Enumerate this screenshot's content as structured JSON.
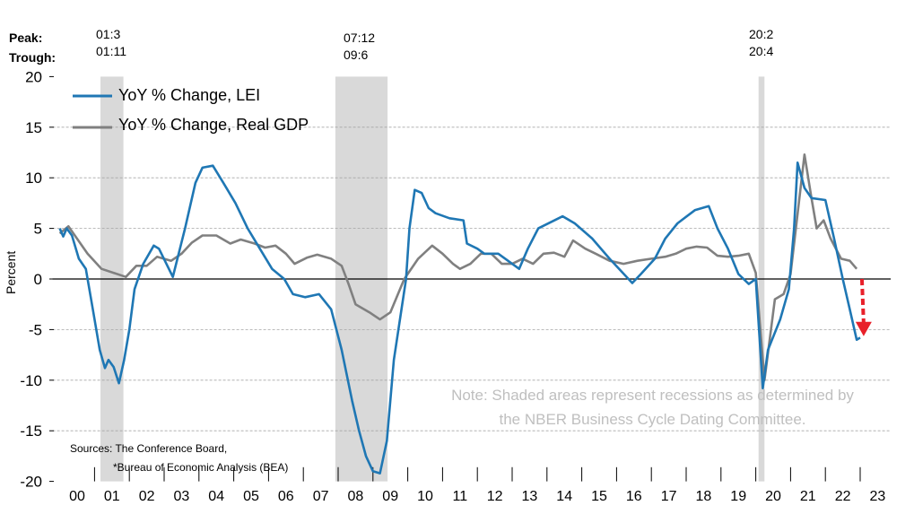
{
  "chart_data": {
    "type": "line",
    "title": "",
    "xlabel": "",
    "ylabel": "Percent",
    "ylim": [
      -20,
      20
    ],
    "yticks": [
      -20,
      -15,
      -10,
      -5,
      0,
      5,
      10,
      15,
      20
    ],
    "xlim": [
      2000,
      2024
    ],
    "xtick_labels": [
      "00",
      "01",
      "02",
      "03",
      "04",
      "05",
      "06",
      "07",
      "08",
      "09",
      "10",
      "11",
      "12",
      "13",
      "14",
      "15",
      "16",
      "17",
      "18",
      "19",
      "20",
      "21",
      "22",
      "23"
    ],
    "grid": true,
    "legend_position": "top-left",
    "series": [
      {
        "name": "YoY % Change, LEI",
        "color": "#1f77b4",
        "x": [
          2000.0,
          2000.1,
          2000.2,
          2000.35,
          2000.55,
          2000.75,
          2000.95,
          2001.15,
          2001.3,
          2001.4,
          2001.55,
          2001.7,
          2001.85,
          2002.0,
          2002.15,
          2002.4,
          2002.7,
          2002.85,
          2003.25,
          2003.6,
          2003.9,
          2004.1,
          2004.4,
          2004.7,
          2005.05,
          2005.4,
          2005.75,
          2006.1,
          2006.45,
          2006.7,
          2007.05,
          2007.45,
          2007.8,
          2008.1,
          2008.4,
          2008.6,
          2008.8,
          2009.0,
          2009.2,
          2009.4,
          2009.6,
          2009.95,
          2010.05,
          2010.2,
          2010.4,
          2010.6,
          2010.8,
          2011.2,
          2011.6,
          2011.7,
          2012.0,
          2012.2,
          2012.6,
          2013.2,
          2013.45,
          2013.75,
          2014.45,
          2014.8,
          2015.3,
          2015.8,
          2016.45,
          2016.7,
          2017.1,
          2017.4,
          2017.75,
          2018.25,
          2018.65,
          2018.9,
          2019.2,
          2019.5,
          2019.8,
          2020.0,
          2020.2,
          2020.35,
          2020.7,
          2020.95,
          2021.1,
          2021.2,
          2021.4,
          2021.6,
          2022.0,
          2022.25,
          2022.5,
          2022.7,
          2022.9,
          2023.0
        ],
        "values": [
          5.0,
          4.2,
          5.0,
          4.3,
          2.0,
          1.0,
          -3.0,
          -7.0,
          -8.8,
          -8.0,
          -8.7,
          -10.3,
          -8.0,
          -5.0,
          -1.0,
          1.5,
          3.3,
          3.0,
          0.2,
          5.0,
          9.5,
          11.0,
          11.2,
          9.5,
          7.5,
          5.0,
          3.0,
          1.0,
          0.0,
          -1.5,
          -1.8,
          -1.5,
          -3.0,
          -7.0,
          -12.0,
          -15.0,
          -17.5,
          -19.0,
          -19.2,
          -16.0,
          -8.0,
          0.0,
          5.0,
          8.8,
          8.5,
          7.0,
          6.5,
          6.0,
          5.8,
          3.5,
          3.0,
          2.5,
          2.5,
          1.0,
          3.0,
          5.0,
          6.2,
          5.5,
          4.0,
          2.0,
          -0.4,
          0.5,
          2.0,
          4.0,
          5.5,
          6.8,
          7.2,
          5.0,
          3.0,
          0.5,
          -0.5,
          0.0,
          -10.8,
          -7.0,
          -4.0,
          -1.0,
          5.0,
          11.5,
          9.0,
          8.0,
          7.8,
          4.0,
          0.0,
          -3.0,
          -6.0,
          -5.8
        ]
      },
      {
        "name": "YoY % Change, Real GDP",
        "color": "#808080",
        "x": [
          2000.0,
          2000.25,
          2000.8,
          2001.2,
          2001.9,
          2002.2,
          2002.5,
          2002.8,
          2003.2,
          2003.5,
          2003.8,
          2004.1,
          2004.5,
          2004.9,
          2005.2,
          2005.6,
          2005.9,
          2006.2,
          2006.5,
          2006.75,
          2007.1,
          2007.4,
          2007.8,
          2008.1,
          2008.3,
          2008.5,
          2008.9,
          2009.2,
          2009.5,
          2009.9,
          2010.3,
          2010.7,
          2011.0,
          2011.3,
          2011.5,
          2011.8,
          2012.1,
          2012.4,
          2012.7,
          2013.0,
          2013.3,
          2013.6,
          2013.9,
          2014.2,
          2014.5,
          2014.75,
          2015.1,
          2015.4,
          2015.8,
          2016.2,
          2016.6,
          2017.0,
          2017.4,
          2017.7,
          2018.0,
          2018.3,
          2018.6,
          2018.9,
          2019.2,
          2019.5,
          2019.8,
          2020.0,
          2020.25,
          2020.55,
          2020.8,
          2021.0,
          2021.4,
          2021.6,
          2021.75,
          2021.95,
          2022.15,
          2022.45,
          2022.7,
          2022.9
        ],
        "values": [
          4.5,
          5.2,
          2.5,
          1.0,
          0.2,
          1.3,
          1.3,
          2.2,
          1.8,
          2.5,
          3.6,
          4.3,
          4.3,
          3.5,
          3.9,
          3.5,
          3.1,
          3.3,
          2.5,
          1.5,
          2.1,
          2.4,
          2.0,
          1.3,
          -0.5,
          -2.5,
          -3.3,
          -4.0,
          -3.3,
          0.0,
          2.0,
          3.3,
          2.5,
          1.5,
          1.0,
          1.5,
          2.5,
          2.5,
          1.5,
          1.5,
          2.0,
          1.5,
          2.5,
          2.6,
          2.2,
          3.8,
          3.0,
          2.5,
          1.8,
          1.5,
          1.8,
          2.0,
          2.2,
          2.5,
          3.0,
          3.2,
          3.1,
          2.3,
          2.2,
          2.3,
          2.5,
          0.6,
          -10.0,
          -2.0,
          -1.5,
          0.5,
          12.3,
          8.0,
          5.0,
          5.8,
          4.0,
          2.0,
          1.8,
          1.0
        ]
      }
    ],
    "recessions": [
      {
        "peak": "01:3",
        "trough": "01:11",
        "start": 2001.17,
        "end": 2001.83
      },
      {
        "peak": "07:12",
        "trough": "09:6",
        "start": 2007.92,
        "end": 2009.42
      },
      {
        "peak": "20:2",
        "trough": "20:4",
        "start": 2020.08,
        "end": 2020.25
      }
    ],
    "arrow": {
      "color": "#e8202a",
      "from": [
        2023.05,
        0
      ],
      "to": [
        2023.1,
        -5.3
      ]
    },
    "peak_label": "Peak:",
    "trough_label": "Trough:",
    "note_lines": [
      "Note: Shaded areas represent recessions as determined by",
      "the NBER Business Cycle Dating Committee."
    ],
    "sources_lines": [
      "Sources: The Conference Board,",
      "*Bureau of Economic Analysis (BEA)"
    ]
  }
}
